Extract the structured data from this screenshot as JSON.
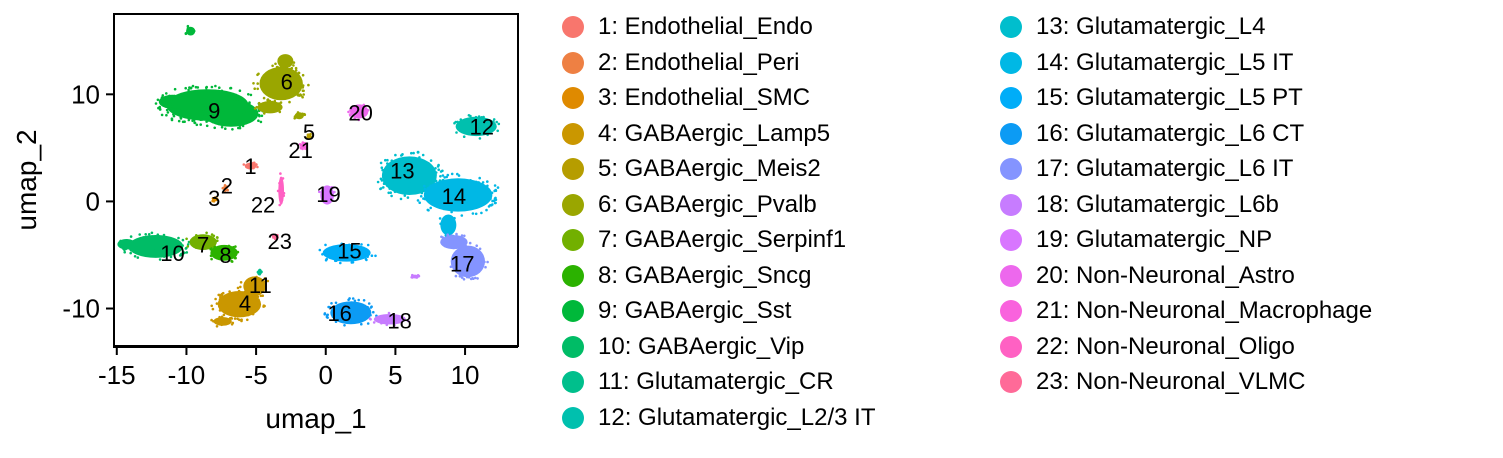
{
  "chart_data": {
    "type": "scatter",
    "title": "",
    "xlabel": "umap_1",
    "ylabel": "umap_2",
    "xlim": [
      -15.2,
      13.8
    ],
    "ylim": [
      -13.5,
      17.5
    ],
    "xticks": [
      -15,
      -10,
      -5,
      0,
      5,
      10
    ],
    "xtick_labels": [
      "-15",
      "-10",
      "-5",
      "0",
      "5",
      "10"
    ],
    "yticks": [
      -10,
      0,
      10
    ],
    "ytick_labels": [
      "-10",
      "0",
      "10"
    ],
    "grid": false,
    "legend_position": "right",
    "clusters": [
      {
        "id": 1,
        "name": "1: Endothelial_Endo",
        "color": "#F8766D",
        "label": "1",
        "center": [
          -5.4,
          3.3
        ]
      },
      {
        "id": 2,
        "name": "2: Endothelial_Peri",
        "color": "#EE8043",
        "label": "2",
        "center": [
          -7.1,
          1.5
        ]
      },
      {
        "id": 3,
        "name": "3: Endothelial_SMC",
        "color": "#DF8A00",
        "label": "3",
        "center": [
          -8.0,
          0.3
        ]
      },
      {
        "id": 4,
        "name": "4: GABAergic_Lamp5",
        "color": "#CA9700",
        "label": "4",
        "center": [
          -5.8,
          -9.5
        ]
      },
      {
        "id": 5,
        "name": "5: GABAergic_Meis2",
        "color": "#B69D00",
        "label": "5",
        "center": [
          -1.2,
          6.5
        ]
      },
      {
        "id": 6,
        "name": "6: GABAergic_Pvalb",
        "color": "#9AA600",
        "label": "6",
        "center": [
          -2.8,
          11.2
        ]
      },
      {
        "id": 7,
        "name": "7: GABAergic_Serpinf1",
        "color": "#72B000",
        "label": "7",
        "center": [
          -8.8,
          -4.0
        ]
      },
      {
        "id": 8,
        "name": "8: GABAergic_Sncg",
        "color": "#2BB200",
        "label": "8",
        "center": [
          -7.2,
          -5.0
        ]
      },
      {
        "id": 9,
        "name": "9: GABAergic_Sst",
        "color": "#00B83A",
        "label": "9",
        "center": [
          -8.0,
          8.5
        ]
      },
      {
        "id": 10,
        "name": "10: GABAergic_Vip",
        "color": "#00BC66",
        "label": "10",
        "center": [
          -11.0,
          -4.8
        ]
      },
      {
        "id": 11,
        "name": "11: Glutamatergic_CR",
        "color": "#00BF8C",
        "label": "11",
        "center": [
          -4.7,
          -7.8
        ]
      },
      {
        "id": 12,
        "name": "12: Glutamatergic_L2/3 IT",
        "color": "#00C0AE",
        "label": "12",
        "center": [
          11.2,
          7.0
        ]
      },
      {
        "id": 13,
        "name": "13: Glutamatergic_L4",
        "color": "#00BECD",
        "label": "13",
        "center": [
          5.5,
          2.9
        ]
      },
      {
        "id": 14,
        "name": "14: Glutamatergic_L5 IT",
        "color": "#00B8E5",
        "label": "14",
        "center": [
          9.2,
          0.5
        ]
      },
      {
        "id": 15,
        "name": "15: Glutamatergic_L5 PT",
        "color": "#00ADF8",
        "label": "15",
        "center": [
          1.7,
          -4.6
        ]
      },
      {
        "id": 16,
        "name": "16: Glutamatergic_L6 CT",
        "color": "#0C9BF4",
        "label": "16",
        "center": [
          1.0,
          -10.4
        ]
      },
      {
        "id": 17,
        "name": "17: Glutamatergic_L6 IT",
        "color": "#8494FF",
        "label": "17",
        "center": [
          9.8,
          -5.8
        ]
      },
      {
        "id": 18,
        "name": "18: Glutamatergic_L6b",
        "color": "#C77CFF",
        "label": "18",
        "center": [
          5.3,
          -11.1
        ]
      },
      {
        "id": 19,
        "name": "19: Glutamatergic_NP",
        "color": "#D876FF",
        "label": "19",
        "center": [
          0.2,
          0.7
        ]
      },
      {
        "id": 20,
        "name": "20: Non-Neuronal_Astro",
        "color": "#ED68ED",
        "label": "20",
        "center": [
          2.5,
          8.3
        ]
      },
      {
        "id": 21,
        "name": "21: Non-Neuronal_Macrophage",
        "color": "#F962DD",
        "label": "21",
        "center": [
          -1.8,
          4.8
        ]
      },
      {
        "id": 22,
        "name": "22: Non-Neuronal_Oligo",
        "color": "#FF61C3",
        "label": "22",
        "center": [
          -4.5,
          -0.3
        ]
      },
      {
        "id": 23,
        "name": "23: Non-Neuronal_VLMC",
        "color": "#FF6A98",
        "label": "23",
        "center": [
          -3.3,
          -3.7
        ]
      }
    ],
    "blobs": [
      {
        "c": 9,
        "x": -8.5,
        "y": 9.0,
        "rx": 3.6,
        "ry": 1.8
      },
      {
        "c": 9,
        "x": -6.8,
        "y": 8.2,
        "rx": 2.4,
        "ry": 1.5
      },
      {
        "c": 9,
        "x": -11.0,
        "y": 9.3,
        "rx": 1.2,
        "ry": 0.8
      },
      {
        "c": 9,
        "x": -9.7,
        "y": 15.9,
        "rx": 0.4,
        "ry": 0.5
      },
      {
        "c": 6,
        "x": -3.2,
        "y": 11.0,
        "rx": 1.9,
        "ry": 1.9
      },
      {
        "c": 6,
        "x": -2.9,
        "y": 13.1,
        "rx": 0.7,
        "ry": 0.8
      },
      {
        "c": 6,
        "x": -4.0,
        "y": 8.8,
        "rx": 1.1,
        "ry": 0.7
      },
      {
        "c": 6,
        "x": -1.9,
        "y": 8.0,
        "rx": 0.4,
        "ry": 0.4
      },
      {
        "c": 20,
        "x": 2.4,
        "y": 8.4,
        "rx": 0.8,
        "ry": 0.8
      },
      {
        "c": 12,
        "x": 10.8,
        "y": 7.0,
        "rx": 1.8,
        "ry": 1.1
      },
      {
        "c": 13,
        "x": 6.0,
        "y": 2.4,
        "rx": 2.4,
        "ry": 2.2
      },
      {
        "c": 14,
        "x": 9.5,
        "y": 0.6,
        "rx": 3.0,
        "ry": 1.9
      },
      {
        "c": 14,
        "x": 8.8,
        "y": -2.2,
        "rx": 0.7,
        "ry": 1.2
      },
      {
        "c": 17,
        "x": 10.2,
        "y": -5.6,
        "rx": 1.5,
        "ry": 1.8
      },
      {
        "c": 17,
        "x": 9.2,
        "y": -3.8,
        "rx": 1.2,
        "ry": 0.8
      },
      {
        "c": 19,
        "x": 0.1,
        "y": 0.6,
        "rx": 0.6,
        "ry": 1.1
      },
      {
        "c": 21,
        "x": -1.6,
        "y": 5.2,
        "rx": 0.3,
        "ry": 0.3
      },
      {
        "c": 5,
        "x": -1.2,
        "y": 6.1,
        "rx": 0.2,
        "ry": 0.2
      },
      {
        "c": 1,
        "x": -5.4,
        "y": 3.3,
        "rx": 0.5,
        "ry": 0.4
      },
      {
        "c": 2,
        "x": -7.2,
        "y": 1.2,
        "rx": 0.2,
        "ry": 0.3
      },
      {
        "c": 3,
        "x": -8.0,
        "y": 0.2,
        "rx": 0.2,
        "ry": 0.2
      },
      {
        "c": 22,
        "x": -3.2,
        "y": 1.0,
        "rx": 0.25,
        "ry": 1.6
      },
      {
        "c": 23,
        "x": -3.6,
        "y": -3.3,
        "rx": 0.2,
        "ry": 0.2
      },
      {
        "c": 10,
        "x": -12.2,
        "y": -4.2,
        "rx": 2.4,
        "ry": 1.3
      },
      {
        "c": 10,
        "x": -14.3,
        "y": -4.0,
        "rx": 0.8,
        "ry": 0.6
      },
      {
        "c": 7,
        "x": -8.8,
        "y": -3.8,
        "rx": 1.2,
        "ry": 0.9
      },
      {
        "c": 8,
        "x": -7.3,
        "y": -4.8,
        "rx": 1.2,
        "ry": 0.9
      },
      {
        "c": 4,
        "x": -6.2,
        "y": -9.6,
        "rx": 1.9,
        "ry": 1.5
      },
      {
        "c": 4,
        "x": -5.1,
        "y": -7.9,
        "rx": 1.0,
        "ry": 1.1
      },
      {
        "c": 4,
        "x": -7.4,
        "y": -11.2,
        "rx": 0.8,
        "ry": 0.5
      },
      {
        "c": 11,
        "x": -4.8,
        "y": -6.6,
        "rx": 0.2,
        "ry": 0.2
      },
      {
        "c": 15,
        "x": 1.5,
        "y": -4.8,
        "rx": 2.1,
        "ry": 1.0
      },
      {
        "c": 16,
        "x": 1.8,
        "y": -10.4,
        "rx": 1.8,
        "ry": 1.3
      },
      {
        "c": 18,
        "x": 4.6,
        "y": -11.0,
        "rx": 1.4,
        "ry": 0.6
      },
      {
        "c": 18,
        "x": 6.4,
        "y": -7.0,
        "rx": 0.3,
        "ry": 0.2
      }
    ]
  }
}
